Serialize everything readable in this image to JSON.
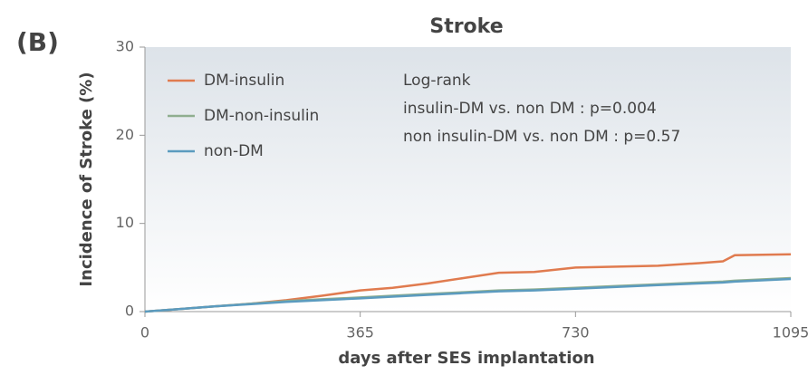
{
  "chart_data": {
    "type": "line",
    "panel_label": "(B)",
    "title": "Stroke",
    "x_label": "days after SES implantation",
    "y_label": "Incidence of Stroke (%)",
    "x": [
      0,
      60,
      120,
      180,
      240,
      300,
      365,
      420,
      480,
      540,
      600,
      660,
      730,
      800,
      870,
      940,
      980,
      1000,
      1095
    ],
    "series": [
      {
        "name": "DM-insulin",
        "color": "#e07b4f",
        "values": [
          0,
          0.3,
          0.6,
          0.9,
          1.3,
          1.8,
          2.4,
          2.7,
          3.2,
          3.8,
          4.4,
          4.5,
          5.0,
          5.1,
          5.2,
          5.5,
          5.7,
          6.4,
          6.5
        ]
      },
      {
        "name": "DM-non-insulin",
        "color": "#8fae8f",
        "values": [
          0,
          0.3,
          0.6,
          0.9,
          1.2,
          1.4,
          1.6,
          1.8,
          2.0,
          2.2,
          2.4,
          2.5,
          2.7,
          2.9,
          3.1,
          3.3,
          3.4,
          3.5,
          3.8
        ]
      },
      {
        "name": "non-DM",
        "color": "#5b9bbf",
        "values": [
          0,
          0.3,
          0.6,
          0.85,
          1.1,
          1.3,
          1.5,
          1.7,
          1.9,
          2.1,
          2.3,
          2.4,
          2.6,
          2.8,
          3.0,
          3.2,
          3.3,
          3.4,
          3.7
        ]
      }
    ],
    "annotations": [
      "Log-rank",
      "insulin-DM vs. non DM : p=0.004",
      "non insulin-DM vs. non DM : p=0.57"
    ],
    "xlim": [
      0,
      1095
    ],
    "ylim": [
      0,
      30
    ],
    "xticks": [
      0,
      365,
      730,
      1095
    ],
    "yticks": [
      0,
      10,
      20,
      30
    ],
    "legend": "upper left"
  }
}
